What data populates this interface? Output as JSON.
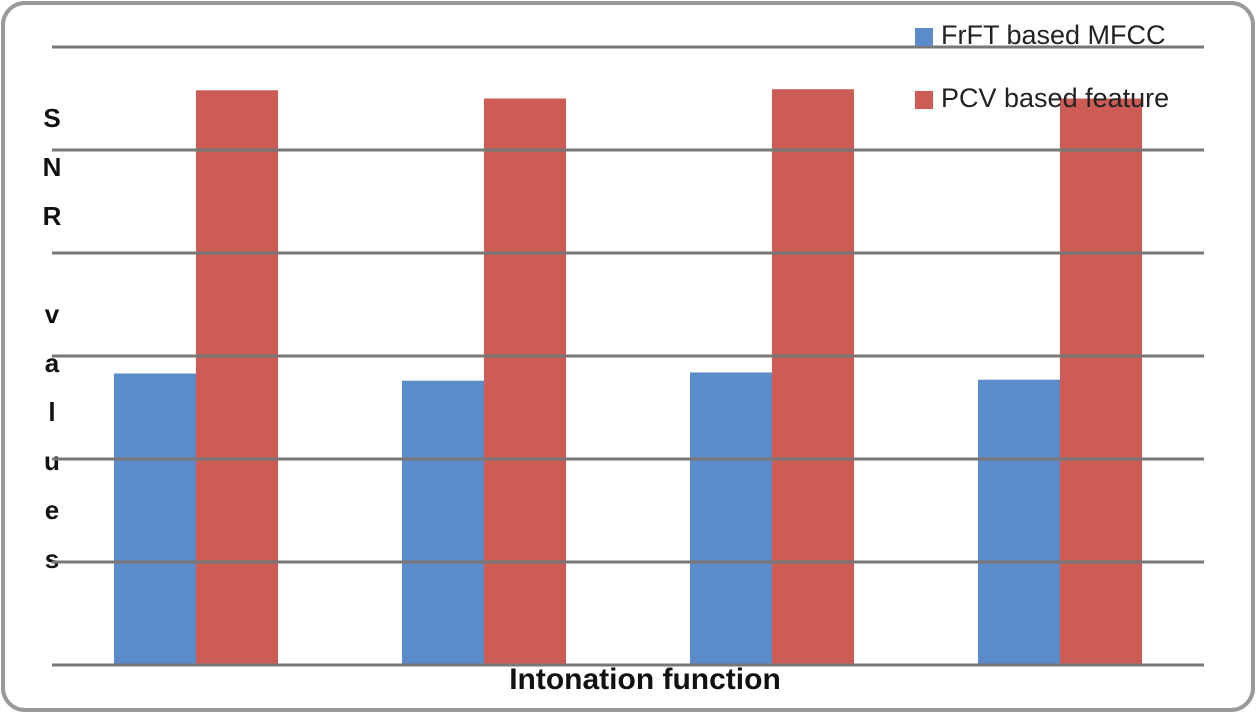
{
  "chart_data": {
    "type": "bar",
    "x_label": "Intonation function",
    "y_label": "SNR values",
    "categories": [
      null,
      null,
      null,
      null
    ],
    "series": [
      {
        "name": "FrFT based MFCC",
        "color": "#5b8bc8",
        "values": [
          2.83,
          2.76,
          2.84,
          2.77
        ]
      },
      {
        "name": "PCV based feature",
        "color": "#cd5b56",
        "values": [
          5.58,
          5.5,
          5.59,
          5.5
        ]
      }
    ],
    "ylim": [
      0,
      6
    ],
    "gridlines": [
      0,
      1,
      2,
      3,
      4,
      5,
      6
    ],
    "grid": true,
    "legend": "top-right"
  }
}
